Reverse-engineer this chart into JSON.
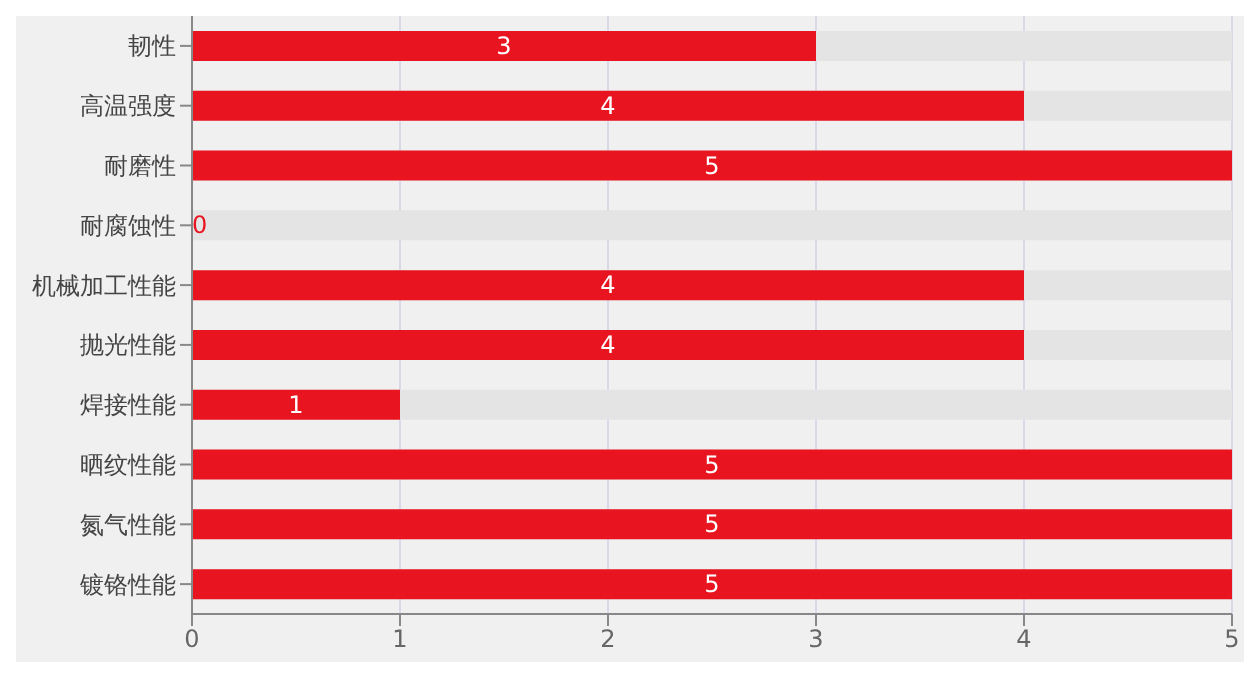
{
  "chart_data": {
    "type": "bar",
    "orientation": "horizontal",
    "categories": [
      "韧性",
      "高温强度",
      "耐磨性",
      "耐腐蚀性",
      "机械加工性能",
      "抛光性能",
      "焊接性能",
      "晒纹性能",
      "氮气性能",
      "镀铬性能"
    ],
    "values": [
      3,
      4,
      5,
      0,
      4,
      4,
      1,
      5,
      5,
      5
    ],
    "color": "#e8141f",
    "xlim": [
      0,
      5
    ],
    "xticks": [
      0,
      1,
      2,
      3,
      4,
      5
    ],
    "grid": "x",
    "data_labels": true
  }
}
